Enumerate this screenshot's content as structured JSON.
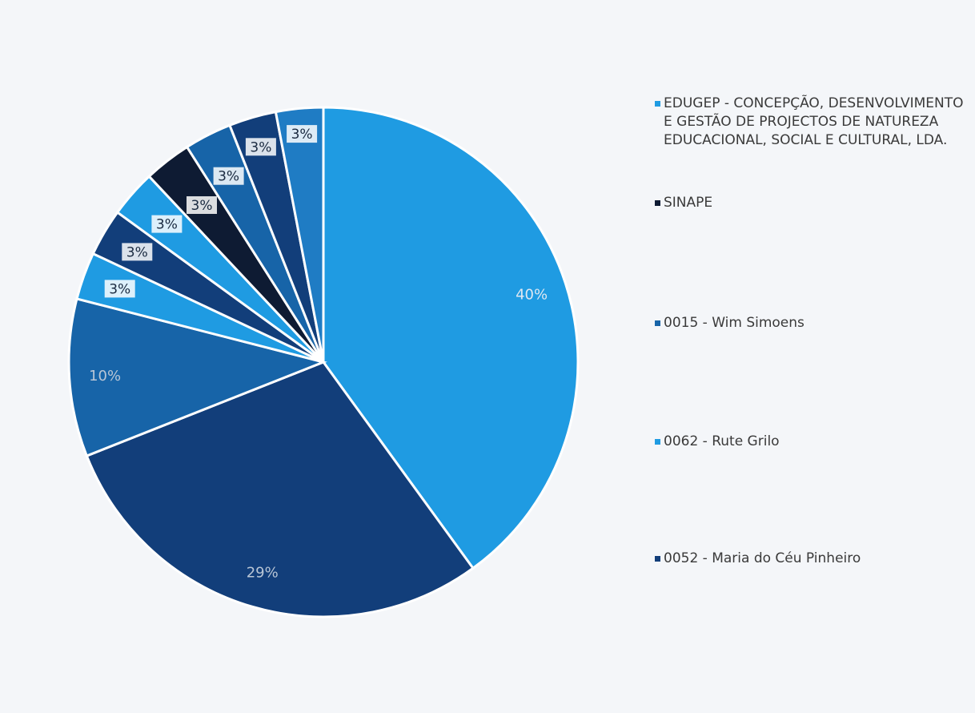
{
  "chart_data": {
    "type": "pie",
    "slices": [
      {
        "value": 40,
        "label": "40%",
        "color": "#1f9be2"
      },
      {
        "value": 29,
        "label": "29%",
        "color": "#123e7a"
      },
      {
        "value": 10,
        "label": "10%",
        "color": "#1764a8"
      },
      {
        "value": 3,
        "label": "3%",
        "color": "#1f9be2"
      },
      {
        "value": 3,
        "label": "3%",
        "color": "#123e7a"
      },
      {
        "value": 3,
        "label": "3%",
        "color": "#1f9be2"
      },
      {
        "value": 3,
        "label": "3%",
        "color": "#0e1b33"
      },
      {
        "value": 3,
        "label": "3%",
        "color": "#1764a8"
      },
      {
        "value": 3,
        "label": "3%",
        "color": "#123e7a"
      },
      {
        "value": 3,
        "label": "3%",
        "color": "#1f7cc4"
      }
    ],
    "legend": [
      {
        "label": "EDUGEP - CONCEPÇÃO, DESENVOLVIMENTO E GESTÃO DE PROJECTOS DE NATUREZA EDUCACIONAL, SOCIAL E CULTURAL, LDA.",
        "color": "#1f9be2"
      },
      {
        "label": "SINAPE",
        "color": "#0e1b33"
      },
      {
        "label": "0015 - Wim Simoens",
        "color": "#1764a8"
      },
      {
        "label": "0062 - Rute Grilo",
        "color": "#1f9be2"
      },
      {
        "label": "0052 - Maria do Céu Pinheiro",
        "color": "#123e7a"
      }
    ],
    "legend_position": "right"
  }
}
